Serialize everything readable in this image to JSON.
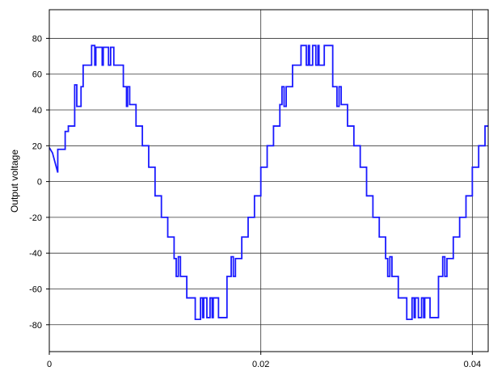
{
  "chart_data": {
    "type": "line",
    "title": "",
    "xlabel": "",
    "ylabel": "Output voltage",
    "xlim": [
      0,
      0.0415
    ],
    "ylim": [
      -95,
      96
    ],
    "grid": true,
    "x_ticks": [
      {
        "value": 0,
        "label": "0"
      },
      {
        "value": 0.02,
        "label": "0.02"
      },
      {
        "value": 0.04,
        "label": "0.04"
      }
    ],
    "y_ticks": [
      {
        "value": 80,
        "label": "80"
      },
      {
        "value": 60,
        "label": "60"
      },
      {
        "value": 40,
        "label": "40"
      },
      {
        "value": 20,
        "label": "20"
      },
      {
        "value": 0,
        "label": "0"
      },
      {
        "value": -20,
        "label": "-20"
      },
      {
        "value": -40,
        "label": "-40"
      },
      {
        "value": -60,
        "label": "-60"
      },
      {
        "value": -80,
        "label": "-80"
      }
    ],
    "colors": {
      "series": "#1a1aff",
      "grid": "#333333",
      "axis": "#000000"
    },
    "series": [
      {
        "x": [
          0,
          0.0003,
          0.0008,
          0.0008,
          0.0015,
          0.0015,
          0.0018,
          0.0018,
          0.0024,
          0.0024,
          0.0026,
          0.0026,
          0.003,
          0.003,
          0.0032,
          0.0032,
          0.004,
          0.004,
          0.0043,
          0.0043,
          0.0044,
          0.0044,
          0.0046,
          0.0046,
          0.005,
          0.005,
          0.0051,
          0.0051,
          0.0053,
          0.0053,
          0.0056,
          0.0056,
          0.0058,
          0.0058,
          0.0059,
          0.0059,
          0.0061,
          0.0061,
          0.0062,
          0.0062,
          0.007,
          0.007,
          0.0073,
          0.0073,
          0.0074,
          0.0074,
          0.0076,
          0.0076,
          0.0082,
          0.0082,
          0.0088,
          0.0088,
          0.0094,
          0.0094,
          0.01,
          0.01,
          0.0106,
          0.0106,
          0.0112,
          0.0112,
          0.0118,
          0.0118,
          0.012,
          0.012,
          0.0122,
          0.0122,
          0.0124,
          0.0124,
          0.013,
          0.013,
          0.0138,
          0.0138,
          0.0143,
          0.0143,
          0.0145,
          0.0145,
          0.0146,
          0.0146,
          0.0149,
          0.0149,
          0.015,
          0.015,
          0.0152,
          0.0152,
          0.0154,
          0.0154,
          0.0155,
          0.0155,
          0.016,
          0.016,
          0.0168,
          0.0168,
          0.0172,
          0.0172,
          0.0174,
          0.0174,
          0.0176,
          0.0176,
          0.0182,
          0.0182,
          0.0188,
          0.0188,
          0.0194,
          0.0194,
          0.02,
          0.02,
          0.0206,
          0.0206,
          0.0212,
          0.0212,
          0.0218,
          0.0218,
          0.022,
          0.022,
          0.0222,
          0.0222,
          0.0224,
          0.0224,
          0.023,
          0.023,
          0.0238,
          0.0238,
          0.0243,
          0.0243,
          0.0245,
          0.0245,
          0.0246,
          0.0246,
          0.0249,
          0.0249,
          0.025,
          0.025,
          0.0252,
          0.0252,
          0.0254,
          0.0254,
          0.0255,
          0.0255,
          0.026,
          0.026,
          0.0268,
          0.0268,
          0.0272,
          0.0272,
          0.0274,
          0.0274,
          0.0276,
          0.0276,
          0.0282,
          0.0282,
          0.0288,
          0.0288,
          0.0294,
          0.0294,
          0.03,
          0.03,
          0.0306,
          0.0306,
          0.0312,
          0.0312,
          0.0318,
          0.0318,
          0.032,
          0.032,
          0.0322,
          0.0322,
          0.0324,
          0.0324,
          0.033,
          0.033,
          0.0338,
          0.0338,
          0.0343,
          0.0343,
          0.0345,
          0.0345,
          0.0346,
          0.0346,
          0.0349,
          0.0349,
          0.035,
          0.035,
          0.0352,
          0.0352,
          0.0354,
          0.0354,
          0.0355,
          0.0355,
          0.036,
          0.036,
          0.0368,
          0.0368,
          0.0372,
          0.0372,
          0.0374,
          0.0374,
          0.0376,
          0.0376,
          0.0382,
          0.0382,
          0.0388,
          0.0388,
          0.0394,
          0.0394,
          0.04,
          0.04,
          0.0406,
          0.0406,
          0.0412,
          0.0412,
          0.0415
        ],
        "y": [
          19,
          16,
          5,
          18,
          18,
          28,
          28,
          31,
          31,
          54,
          54,
          42,
          42,
          53,
          53,
          65,
          65,
          76,
          76,
          65,
          65,
          75,
          75,
          75,
          75,
          65,
          65,
          75,
          75,
          75,
          75,
          65,
          65,
          75,
          75,
          75,
          75,
          65,
          65,
          65,
          65,
          53,
          53,
          42,
          42,
          53,
          53,
          43,
          43,
          31,
          31,
          20,
          20,
          8,
          8,
          -8,
          -8,
          -20,
          -20,
          -31,
          -31,
          -43,
          -43,
          -53,
          -53,
          -42,
          -42,
          -53,
          -53,
          -65,
          -65,
          -77,
          -77,
          -65,
          -65,
          -76,
          -76,
          -65,
          -65,
          -76,
          -76,
          -76,
          -76,
          -65,
          -65,
          -76,
          -76,
          -65,
          -65,
          -76,
          -76,
          -53,
          -53,
          -42,
          -42,
          -53,
          -53,
          -43,
          -43,
          -31,
          -31,
          -20,
          -20,
          -8,
          -8,
          8,
          8,
          20,
          20,
          31,
          31,
          43,
          43,
          53,
          53,
          42,
          42,
          53,
          53,
          65,
          65,
          76,
          76,
          65,
          65,
          76,
          76,
          65,
          65,
          76,
          76,
          76,
          76,
          65,
          65,
          76,
          76,
          65,
          65,
          76,
          76,
          53,
          53,
          42,
          42,
          53,
          53,
          43,
          43,
          31,
          31,
          20,
          20,
          8,
          8,
          -8,
          -8,
          -20,
          -20,
          -31,
          -31,
          -43,
          -43,
          -53,
          -53,
          -42,
          -42,
          -53,
          -53,
          -65,
          -65,
          -77,
          -77,
          -65,
          -65,
          -76,
          -76,
          -65,
          -65,
          -76,
          -76,
          -76,
          -76,
          -65,
          -65,
          -76,
          -76,
          -65,
          -65,
          -76,
          -76,
          -53,
          -53,
          -42,
          -42,
          -53,
          -53,
          -43,
          -43,
          -31,
          -31,
          -20,
          -20,
          -8,
          -8,
          8,
          8,
          20,
          20,
          31,
          31
        ]
      }
    ]
  }
}
